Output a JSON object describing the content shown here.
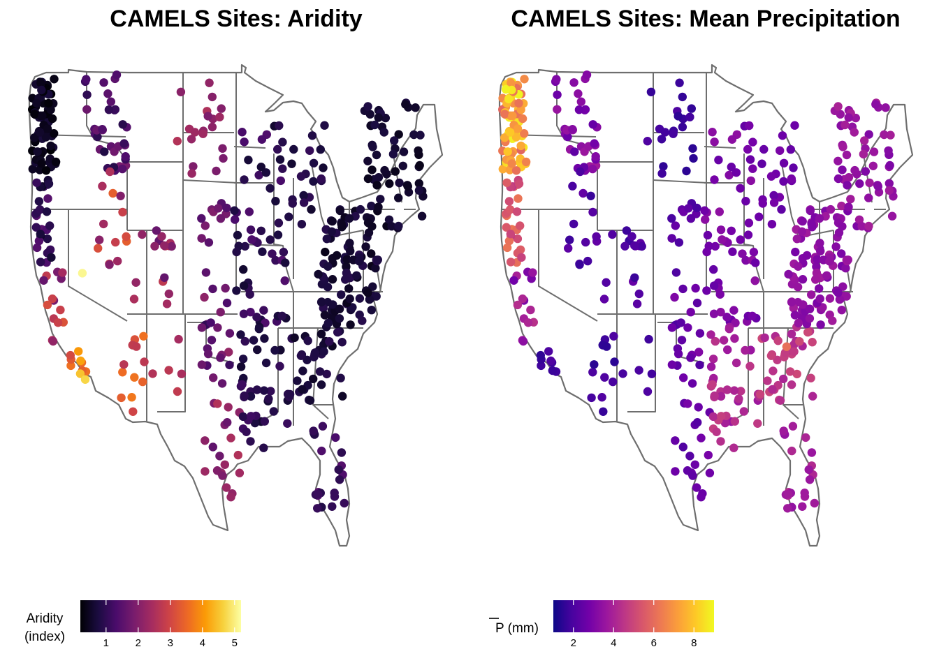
{
  "chart_data": [
    {
      "type": "scatter",
      "title": "CAMELS Sites: Aridity",
      "legend_title_lines": [
        "Aridity",
        "(index)"
      ],
      "palette": "inferno",
      "range": [
        0.2,
        5.2
      ],
      "ticks": [
        1,
        2,
        3,
        4,
        5
      ],
      "legend_position": "bottom-left",
      "regions": [
        {
          "lon": [
            -124.4,
            -121.0
          ],
          "lat": [
            44.0,
            48.8
          ],
          "n": 70,
          "v": [
            0.2,
            0.7
          ]
        },
        {
          "lon": [
            -124.2,
            -121.5
          ],
          "lat": [
            39.0,
            44.0
          ],
          "n": 28,
          "v": [
            0.5,
            1.5
          ]
        },
        {
          "lon": [
            -123.0,
            -119.5
          ],
          "lat": [
            35.0,
            39.0
          ],
          "n": 14,
          "v": [
            1.5,
            3.2
          ]
        },
        {
          "lon": [
            -119.0,
            -116.5
          ],
          "lat": [
            32.6,
            35.0
          ],
          "n": 8,
          "v": [
            2.8,
            4.4
          ]
        },
        {
          "lon": [
            -117.0,
            -111.0
          ],
          "lat": [
            44.0,
            49.0
          ],
          "n": 35,
          "v": [
            0.8,
            1.9
          ]
        },
        {
          "lon": [
            -115.5,
            -111.0
          ],
          "lat": [
            39.0,
            44.0
          ],
          "n": 14,
          "v": [
            1.8,
            3.4
          ]
        },
        {
          "lon": [
            -111.0,
            -104.0
          ],
          "lat": [
            37.0,
            41.0
          ],
          "n": 16,
          "v": [
            1.6,
            2.8
          ]
        },
        {
          "lon": [
            -112.5,
            -108.5
          ],
          "lat": [
            31.5,
            35.5
          ],
          "n": 12,
          "v": [
            2.6,
            3.8
          ]
        },
        {
          "lon": [
            -108.0,
            -103.0
          ],
          "lat": [
            32.5,
            36.0
          ],
          "n": 5,
          "v": [
            2.0,
            3.0
          ]
        },
        {
          "lon": [
            -104.0,
            -97.0
          ],
          "lat": [
            43.5,
            48.8
          ],
          "n": 20,
          "v": [
            1.8,
            2.6
          ]
        },
        {
          "lon": [
            -101.0,
            -96.5
          ],
          "lat": [
            38.5,
            42.5
          ],
          "n": 12,
          "v": [
            1.3,
            2.1
          ]
        },
        {
          "lon": [
            -100.5,
            -96.0
          ],
          "lat": [
            33.0,
            38.0
          ],
          "n": 22,
          "v": [
            1.0,
            2.2
          ]
        },
        {
          "lon": [
            -100.0,
            -95.0
          ],
          "lat": [
            27.0,
            32.0
          ],
          "n": 20,
          "v": [
            1.4,
            2.6
          ]
        },
        {
          "lon": [
            -96.0,
            -88.0
          ],
          "lat": [
            36.0,
            46.5
          ],
          "n": 55,
          "v": [
            0.6,
            1.4
          ]
        },
        {
          "lon": [
            -95.0,
            -88.0
          ],
          "lat": [
            29.5,
            36.0
          ],
          "n": 42,
          "v": [
            0.6,
            1.2
          ]
        },
        {
          "lon": [
            -90.0,
            -83.0
          ],
          "lat": [
            41.0,
            46.5
          ],
          "n": 24,
          "v": [
            0.6,
            1.1
          ]
        },
        {
          "lon": [
            -88.0,
            -80.5
          ],
          "lat": [
            32.0,
            36.0
          ],
          "n": 38,
          "v": [
            0.5,
            1.0
          ]
        },
        {
          "lon": [
            -84.0,
            -75.5
          ],
          "lat": [
            36.0,
            42.0
          ],
          "n": 95,
          "v": [
            0.4,
            0.9
          ]
        },
        {
          "lon": [
            -77.5,
            -69.0
          ],
          "lat": [
            41.0,
            47.5
          ],
          "n": 62,
          "v": [
            0.4,
            0.8
          ]
        },
        {
          "lon": [
            -85.0,
            -80.0
          ],
          "lat": [
            26.0,
            31.5
          ],
          "n": 22,
          "v": [
            0.8,
            1.5
          ]
        }
      ],
      "highlights": [
        {
          "lon": -117.3,
          "lat": 38.7,
          "v": 5.1
        },
        {
          "lon": -117.6,
          "lat": 33.5,
          "v": 4.5
        },
        {
          "lon": -116.9,
          "lat": 33.2,
          "v": 4.7
        }
      ]
    },
    {
      "type": "scatter",
      "title": "CAMELS Sites: Mean Precipitation",
      "legend_title_lines": [
        "P (mm)"
      ],
      "legend_title_overline": "P",
      "palette": "plasma",
      "range": [
        1.0,
        9.0
      ],
      "ticks": [
        2,
        4,
        6,
        8
      ],
      "legend_position": "bottom-left",
      "regions": [
        {
          "lon": [
            -124.4,
            -121.0
          ],
          "lat": [
            44.0,
            48.8
          ],
          "n": 70,
          "v": [
            5.8,
            8.9
          ]
        },
        {
          "lon": [
            -124.2,
            -121.5
          ],
          "lat": [
            39.0,
            44.0
          ],
          "n": 28,
          "v": [
            4.6,
            6.3
          ]
        },
        {
          "lon": [
            -123.0,
            -119.5
          ],
          "lat": [
            35.0,
            39.0
          ],
          "n": 14,
          "v": [
            2.6,
            4.4
          ]
        },
        {
          "lon": [
            -119.0,
            -116.5
          ],
          "lat": [
            32.6,
            35.0
          ],
          "n": 8,
          "v": [
            1.4,
            2.2
          ]
        },
        {
          "lon": [
            -117.0,
            -111.0
          ],
          "lat": [
            44.0,
            49.0
          ],
          "n": 35,
          "v": [
            2.4,
            3.8
          ]
        },
        {
          "lon": [
            -115.5,
            -111.0
          ],
          "lat": [
            39.0,
            44.0
          ],
          "n": 14,
          "v": [
            1.6,
            2.5
          ]
        },
        {
          "lon": [
            -111.0,
            -104.0
          ],
          "lat": [
            37.0,
            41.0
          ],
          "n": 16,
          "v": [
            1.7,
            2.6
          ]
        },
        {
          "lon": [
            -112.5,
            -108.5
          ],
          "lat": [
            31.5,
            35.5
          ],
          "n": 12,
          "v": [
            1.4,
            2.2
          ]
        },
        {
          "lon": [
            -108.0,
            -103.0
          ],
          "lat": [
            32.5,
            36.0
          ],
          "n": 5,
          "v": [
            1.5,
            2.2
          ]
        },
        {
          "lon": [
            -104.0,
            -97.0
          ],
          "lat": [
            43.5,
            48.8
          ],
          "n": 20,
          "v": [
            1.4,
            2.1
          ]
        },
        {
          "lon": [
            -101.0,
            -96.5
          ],
          "lat": [
            38.5,
            42.5
          ],
          "n": 12,
          "v": [
            1.8,
            2.8
          ]
        },
        {
          "lon": [
            -100.5,
            -96.0
          ],
          "lat": [
            33.0,
            38.0
          ],
          "n": 22,
          "v": [
            2.0,
            3.1
          ]
        },
        {
          "lon": [
            -100.0,
            -95.0
          ],
          "lat": [
            27.0,
            32.0
          ],
          "n": 20,
          "v": [
            2.0,
            2.9
          ]
        },
        {
          "lon": [
            -96.0,
            -88.0
          ],
          "lat": [
            36.0,
            46.5
          ],
          "n": 55,
          "v": [
            2.5,
            3.4
          ]
        },
        {
          "lon": [
            -95.0,
            -88.0
          ],
          "lat": [
            29.5,
            36.0
          ],
          "n": 42,
          "v": [
            3.6,
            4.8
          ]
        },
        {
          "lon": [
            -90.0,
            -83.0
          ],
          "lat": [
            41.0,
            46.5
          ],
          "n": 24,
          "v": [
            2.4,
            3.0
          ]
        },
        {
          "lon": [
            -88.0,
            -80.5
          ],
          "lat": [
            32.0,
            36.0
          ],
          "n": 38,
          "v": [
            4.0,
            5.2
          ]
        },
        {
          "lon": [
            -84.0,
            -75.5
          ],
          "lat": [
            36.0,
            42.0
          ],
          "n": 95,
          "v": [
            2.9,
            3.8
          ]
        },
        {
          "lon": [
            -77.5,
            -69.0
          ],
          "lat": [
            41.0,
            47.5
          ],
          "n": 62,
          "v": [
            3.0,
            4.0
          ]
        },
        {
          "lon": [
            -85.0,
            -80.0
          ],
          "lat": [
            26.0,
            31.5
          ],
          "n": 22,
          "v": [
            3.4,
            4.3
          ]
        }
      ],
      "highlights": [
        {
          "lon": -84.2,
          "lat": 34.9,
          "v": 6.1
        },
        {
          "lon": -123.9,
          "lat": 48.2,
          "v": 8.9
        },
        {
          "lon": -123.5,
          "lat": 47.7,
          "v": 8.6
        }
      ]
    }
  ]
}
